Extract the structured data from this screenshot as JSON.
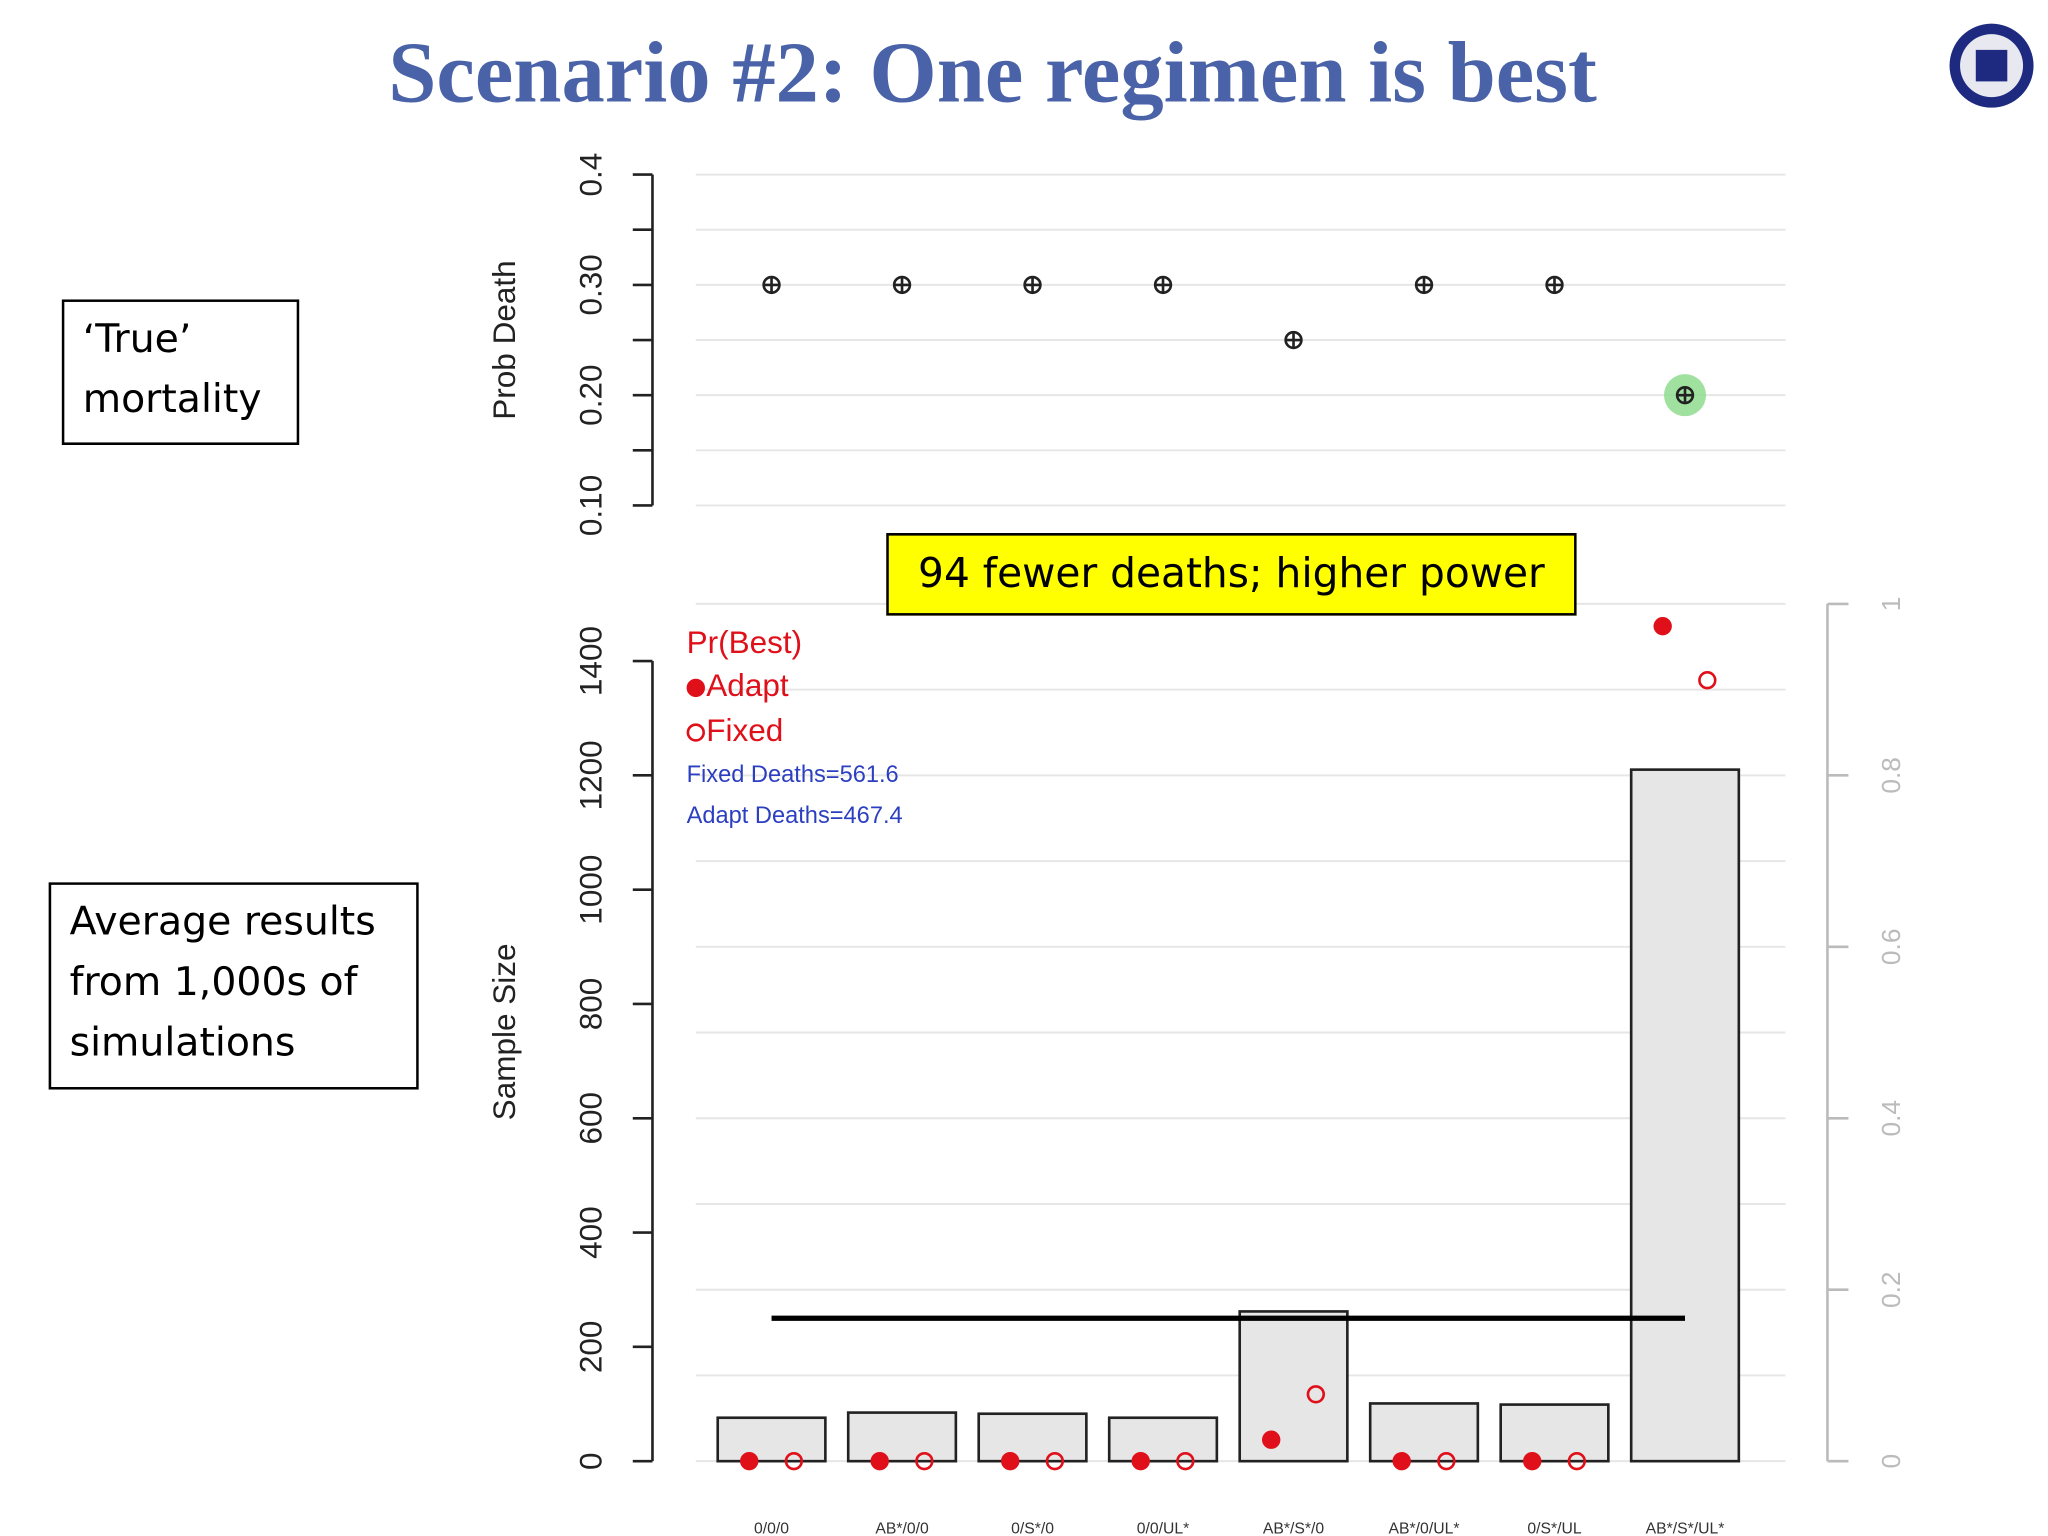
{
  "title": "Scenario #2: One regimen is best",
  "boxes": [
    "‘True’ mortality",
    "Average results from 1,000s of simulations"
  ],
  "annotation": "94 fewer deaths; higher power",
  "chart_data": [
    {
      "type": "point",
      "ylabel": "Prob Death",
      "categories": [
        "0/0/0",
        "AB*/0/0",
        "0/S*/0",
        "0/0/UL*",
        "AB*/S*/0",
        "AB*/0/UL*",
        "0/S*/UL",
        "AB*/S*/UL*"
      ],
      "values": [
        0.3,
        0.3,
        0.3,
        0.3,
        0.25,
        0.3,
        0.3,
        0.2
      ],
      "color": "#222222",
      "highlight_index": 7,
      "highlight_color": "#8fdc8f",
      "ylim": [
        0.1,
        0.4
      ],
      "yticks": [
        {
          "value": 0.1,
          "label": "0.10"
        },
        {
          "value": 0.2,
          "label": "0.20"
        },
        {
          "value": 0.3,
          "label": "0.30"
        },
        0.4
      ],
      "yminorticks": [
        0.15,
        0.25,
        0.35
      ],
      "grid": true
    },
    {
      "type": "bar",
      "ylabel": "Sample Size",
      "categories": [
        "0/0/0",
        "AB*/0/0",
        "0/S*/0",
        "0/0/UL*",
        "AB*/S*/0",
        "AB*/0/UL*",
        "0/S*/UL",
        "AB*/S*/UL*"
      ],
      "values": [
        76,
        85,
        83,
        76,
        262,
        101,
        99,
        1210
      ],
      "color": "#e6e6e6",
      "reference_line": 250,
      "ylim": [
        0,
        1500
      ],
      "yticks": [
        0,
        200,
        400,
        600,
        800,
        1000,
        1200,
        1400
      ],
      "y2lim": [
        0,
        1
      ],
      "y2ticks": [
        0,
        0.2,
        0.4,
        0.6,
        0.8,
        1
      ],
      "y2minorticks": [
        0.1,
        0.3,
        0.5,
        0.7,
        0.9
      ],
      "grid": "y2",
      "legend_title": "Pr(Best)",
      "series": [
        {
          "name": "Adapt",
          "color": "#e0101a",
          "filled": true,
          "axis": "y2",
          "values": [
            0,
            0,
            0,
            0,
            0.025,
            0,
            0,
            0.974
          ]
        },
        {
          "name": "Fixed",
          "color": "#e0101a",
          "filled": false,
          "axis": "y2",
          "values": [
            0,
            0,
            0,
            0,
            0.078,
            0,
            0,
            0.911
          ]
        }
      ],
      "notes": [
        "Fixed Deaths=561.6",
        "Adapt Deaths=467.4"
      ],
      "notes_color": "#2c3fc0"
    }
  ]
}
